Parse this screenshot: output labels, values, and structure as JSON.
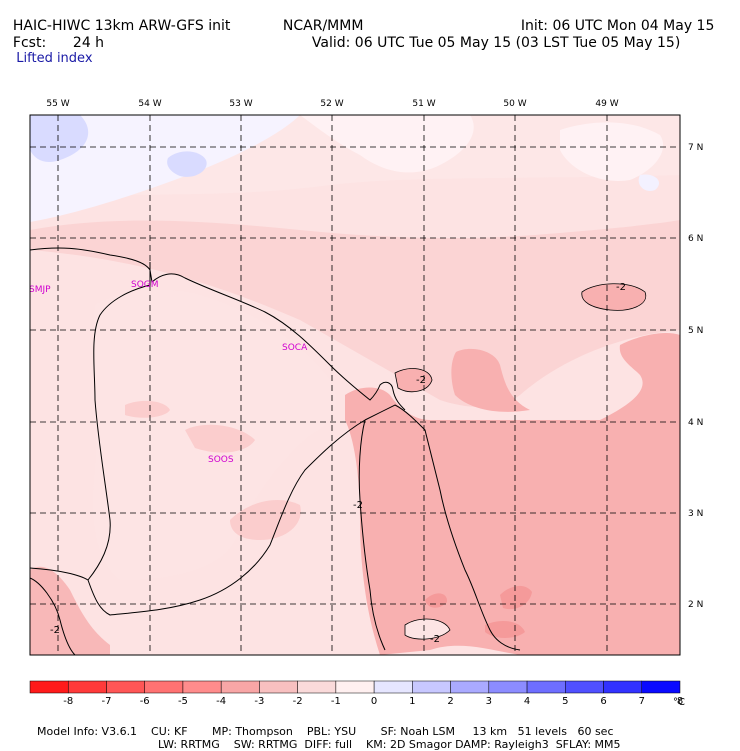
{
  "header": {
    "model": "HAIC-HIWC 13km ARW-GFS init",
    "center": "NCAR/MMM",
    "init": "Init: 06 UTC Mon 04 May 15",
    "fcst_label": "Fcst:",
    "fcst_value": "24 h",
    "valid": "Valid: 06 UTC Tue 05 May 15 (03 LST Tue 05 May 15)",
    "field": "Lifted index"
  },
  "map": {
    "lon_labels": [
      "55 W",
      "54 W",
      "53 W",
      "52 W",
      "51 W",
      "50 W",
      "49 W"
    ],
    "lat_labels": [
      "7 N",
      "6 N",
      "5 N",
      "4 N",
      "3 N",
      "2 N"
    ],
    "stations": [
      "SMJP",
      "SOGM",
      "SOCA",
      "SOOS"
    ],
    "contour_labels": [
      "-2",
      "-2",
      "-2",
      "-2",
      "-2"
    ]
  },
  "colorbar": {
    "ticks": [
      "-8",
      "-7",
      "-6",
      "-5",
      "-4",
      "-3",
      "-2",
      "-1",
      "0",
      "1",
      "2",
      "3",
      "4",
      "5",
      "6",
      "7",
      "8"
    ],
    "unit": "°C",
    "colors": [
      "#ff1a1a",
      "#ff3a3a",
      "#ff5656",
      "#ff7272",
      "#ff8c8c",
      "#f8a6a6",
      "#f8c0c0",
      "#fadada",
      "#fff0f0",
      "#e6e6ff",
      "#c8c8ff",
      "#aaaaff",
      "#8c8cff",
      "#6e6eff",
      "#5050ff",
      "#3232ff",
      "#0a0aff"
    ]
  },
  "footer": {
    "line1": "Model Info: V3.6.1    CU: KF       MP: Thompson    PBL: YSU       SF: Noah LSM     13 km   51 levels   60 sec",
    "line2": "LW: RRTMG    SW: RRTMG  DIFF: full    KM: 2D Smagor DAMP: Rayleigh3  SFLAY: MM5"
  }
}
